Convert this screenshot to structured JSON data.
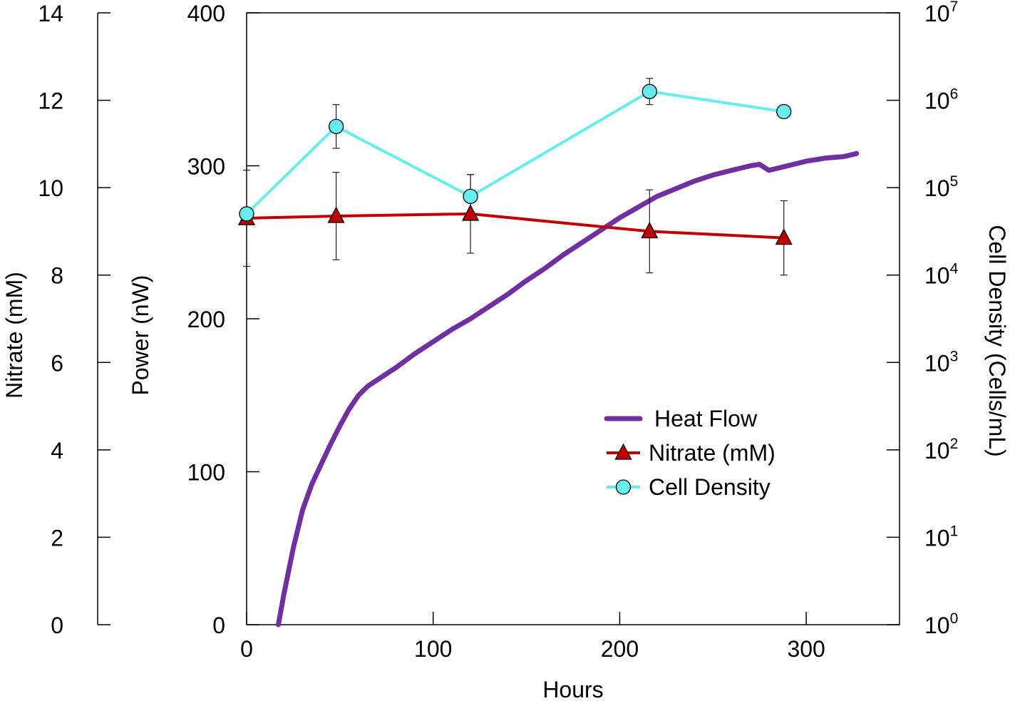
{
  "chart_data": {
    "type": "line",
    "x_axis": {
      "label": "Hours",
      "range": [
        0,
        350
      ],
      "ticks": [
        0,
        100,
        200,
        300
      ],
      "tick_labels": [
        "0",
        "100",
        "200",
        "300"
      ]
    },
    "y_axes": {
      "power": {
        "label": "Power (nW)",
        "range": [
          0,
          400
        ],
        "ticks": [
          0,
          100,
          200,
          300,
          400
        ],
        "tick_labels": [
          "0",
          "100",
          "200",
          "300",
          "400"
        ]
      },
      "nitrate": {
        "label": "Nitrate (mM)",
        "range": [
          0,
          14
        ],
        "ticks": [
          0,
          2,
          4,
          6,
          8,
          10,
          12,
          14
        ],
        "tick_labels": [
          "0",
          "2",
          "4",
          "6",
          "8",
          "10",
          "12",
          "14"
        ]
      },
      "cell_density": {
        "label": "Cell Density (Cells/mL)",
        "scale": "log",
        "range_exponent": [
          0,
          7
        ],
        "base": "10",
        "tick_exponents": [
          "0",
          "1",
          "2",
          "3",
          "4",
          "5",
          "6",
          "7"
        ]
      }
    },
    "legend": {
      "position": "center-right",
      "entries": [
        "Heat Flow",
        "Nitrate (mM)",
        "Cell Density"
      ]
    },
    "series": [
      {
        "name": "Heat Flow",
        "axis": "power",
        "color": "#7030A0",
        "x": [
          17,
          20,
          25,
          30,
          35,
          40,
          45,
          50,
          55,
          60,
          65,
          70,
          80,
          90,
          100,
          110,
          120,
          130,
          140,
          150,
          160,
          170,
          180,
          190,
          200,
          210,
          220,
          230,
          240,
          250,
          260,
          270,
          275,
          280,
          290,
          300,
          310,
          320,
          327
        ],
        "y": [
          0,
          20,
          50,
          75,
          92,
          105,
          118,
          130,
          141,
          150,
          156,
          160,
          168,
          177,
          185,
          193,
          200,
          208,
          216,
          225,
          233,
          242,
          250,
          258,
          266,
          273,
          280,
          285,
          290,
          294,
          297,
          300,
          301,
          297,
          300,
          303,
          305,
          306,
          308
        ]
      },
      {
        "name": "Nitrate (mM)",
        "axis": "nitrate",
        "color": "#C00000",
        "marker": "triangle",
        "x": [
          0,
          48,
          120,
          216,
          288
        ],
        "y": [
          9.3,
          9.35,
          9.4,
          9.0,
          8.85
        ],
        "error": [
          1.1,
          1.0,
          0.9,
          0.95,
          0.85
        ]
      },
      {
        "name": "Cell Density",
        "axis": "cell_density",
        "color": "#66EEEE",
        "marker": "circle",
        "x": [
          0,
          48,
          120,
          216,
          288
        ],
        "log10_y": [
          4.7,
          5.7,
          4.9,
          6.1,
          5.87
        ],
        "log10_error": [
          0,
          0.25,
          0.25,
          0.15,
          0
        ]
      }
    ]
  }
}
